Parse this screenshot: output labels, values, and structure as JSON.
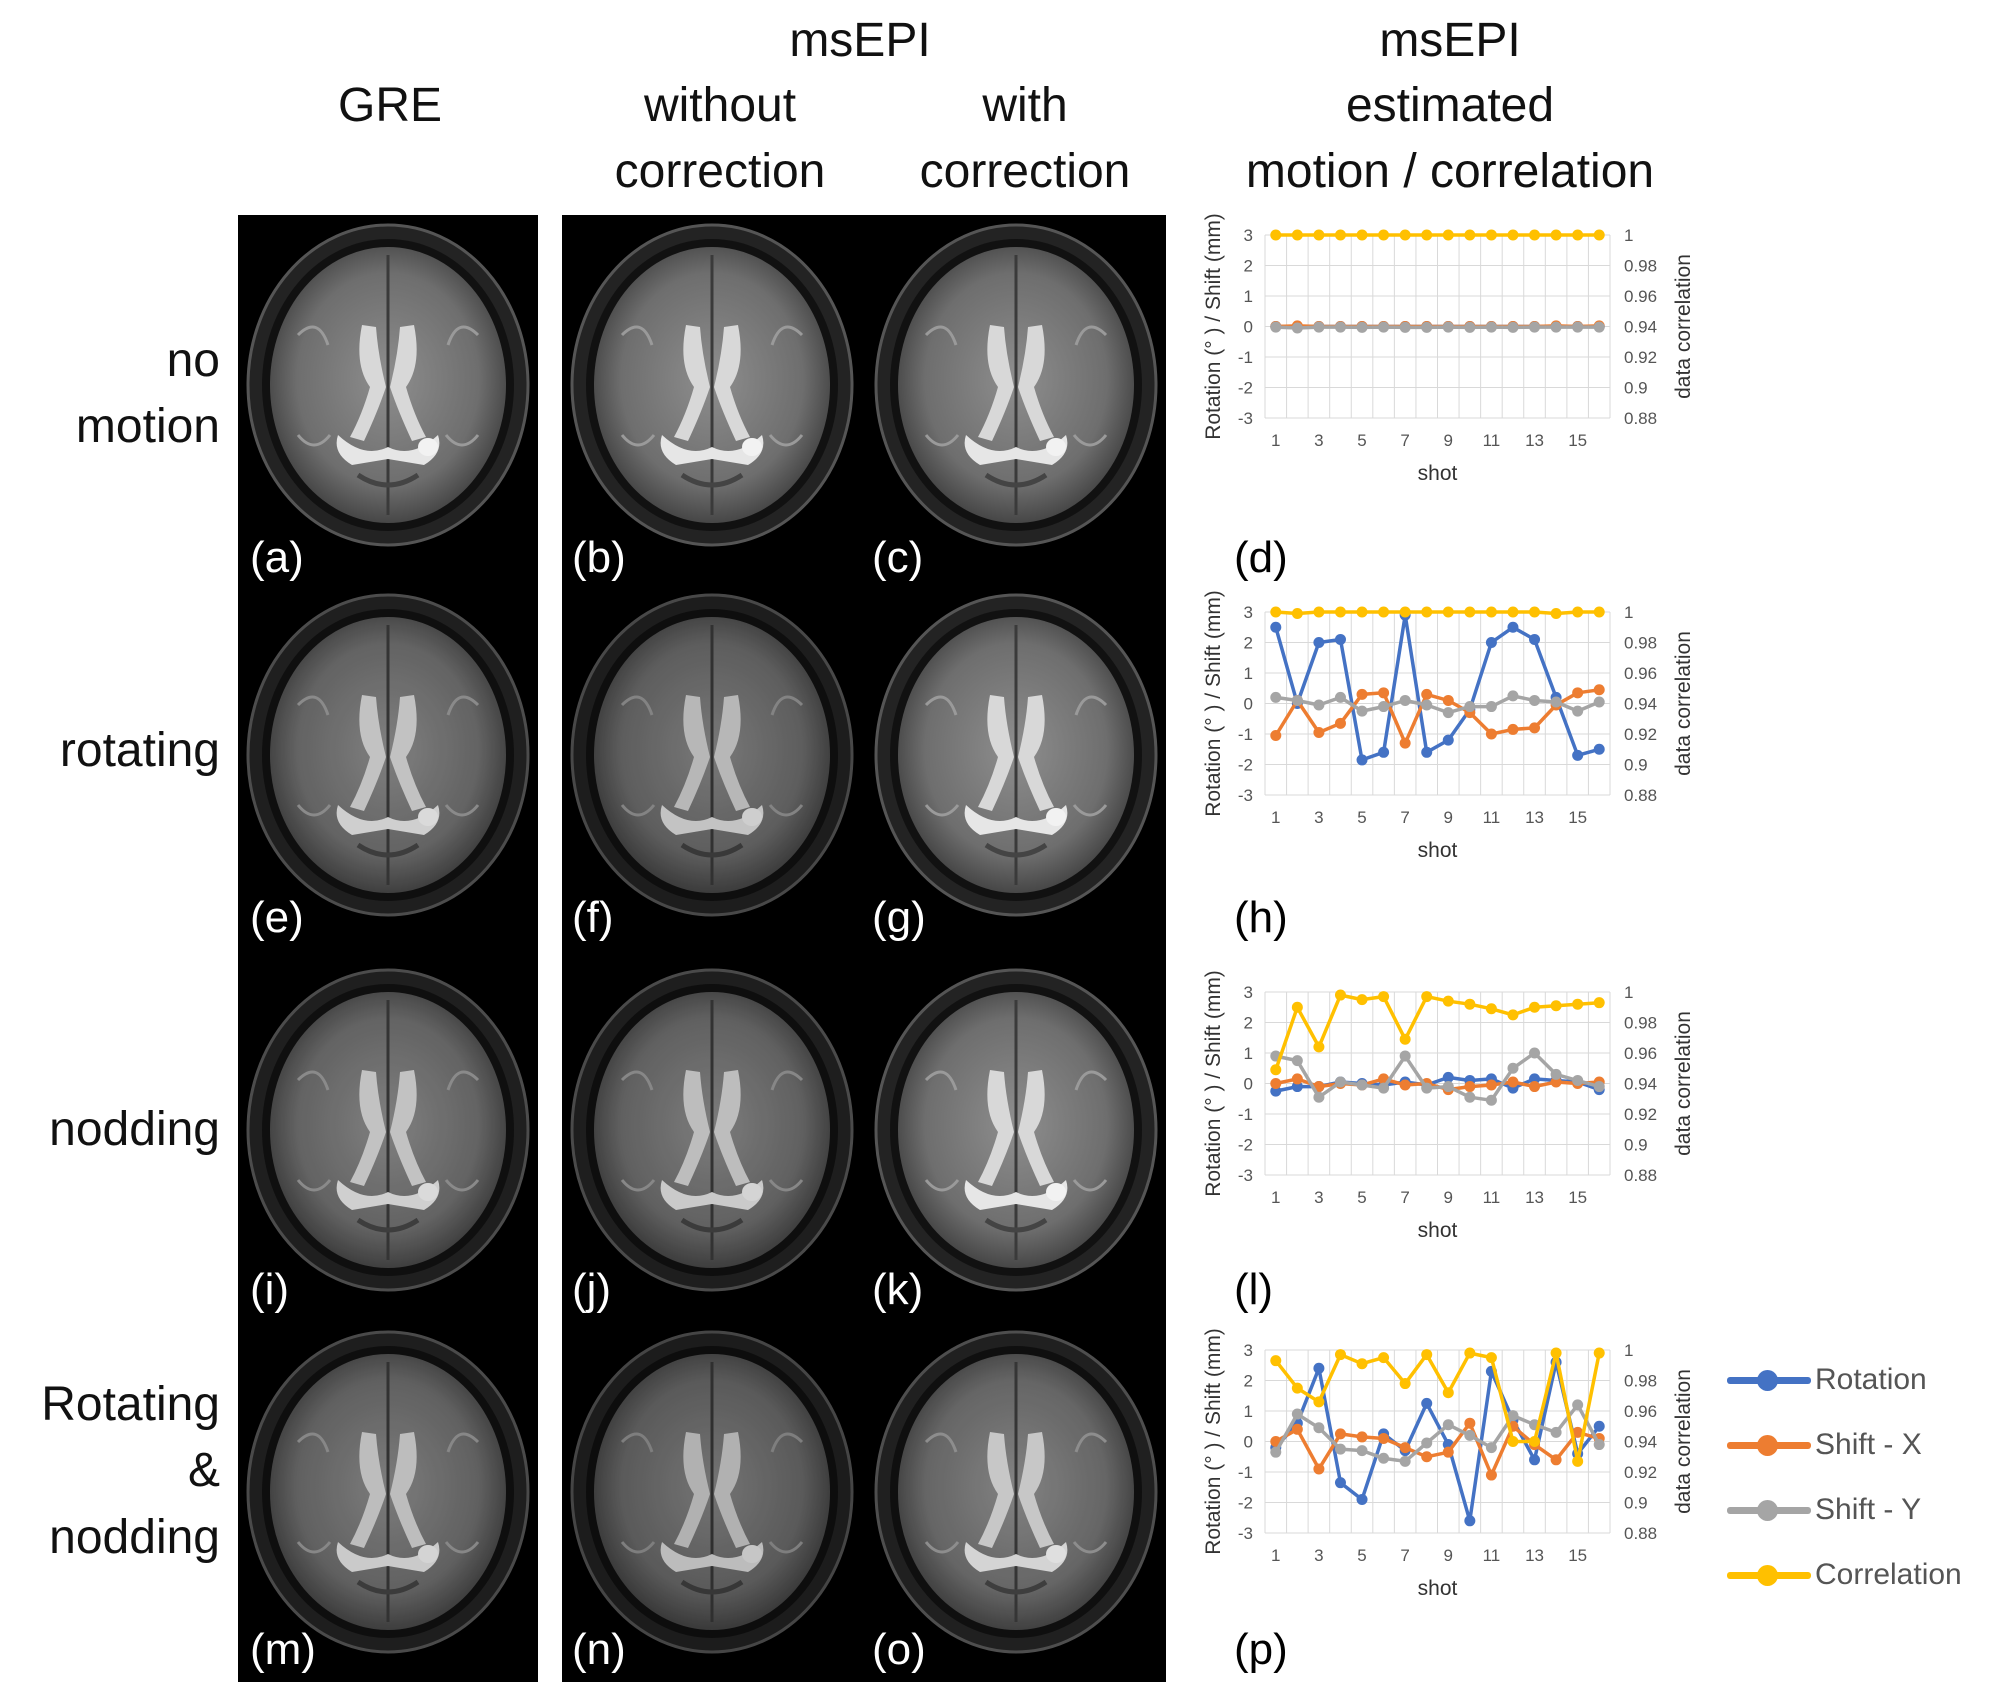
{
  "headers": {
    "gre": "GRE",
    "msepi_left": "msEPI",
    "without_1": "without",
    "without_2": "correction",
    "with_1": "with",
    "with_2": "correction",
    "msepi_right": "msEPI",
    "estimated": "estimated",
    "motion_corr": "motion / correlation"
  },
  "row_labels": {
    "r1a": "no",
    "r1b": "motion",
    "r2": "rotating",
    "r3": "nodding",
    "r4a": "Rotating",
    "r4b": "&",
    "r4c": "nodding"
  },
  "panel_labels": [
    "(a)",
    "(b)",
    "(c)",
    "(d)",
    "(e)",
    "(f)",
    "(g)",
    "(h)",
    "(i)",
    "(j)",
    "(k)",
    "(l)",
    "(m)",
    "(n)",
    "(o)",
    "(p)"
  ],
  "legend": [
    {
      "name": "Rotation",
      "color": "#4472C4"
    },
    {
      "name": "Shift - X",
      "color": "#ED7D31"
    },
    {
      "name": "Shift - Y",
      "color": "#A5A5A5"
    },
    {
      "name": "Correlation",
      "color": "#FFC000"
    }
  ],
  "chart_data": [
    {
      "type": "line",
      "panel": "(d)",
      "xlabel": "shot",
      "ylabel": "Rotation (° ) / Shift (mm)",
      "y2label": "data correlation",
      "ylim": [
        -3,
        3
      ],
      "y2lim": [
        0.88,
        1
      ],
      "yticks": [
        "3",
        "2",
        "1",
        "0",
        "-1",
        "-2",
        "-3"
      ],
      "y2ticks": [
        "1",
        "0.98",
        "0.96",
        "0.94",
        "0.92",
        "0.9",
        "0.88"
      ],
      "xticks": [
        "1",
        "3",
        "5",
        "7",
        "9",
        "11",
        "13",
        "15"
      ],
      "x": [
        1,
        2,
        3,
        4,
        5,
        6,
        7,
        8,
        9,
        10,
        11,
        12,
        13,
        14,
        15,
        16
      ],
      "series": [
        {
          "name": "Rotation",
          "axis": "left",
          "values": [
            0,
            0,
            0,
            0,
            0,
            0,
            0,
            0,
            0,
            0,
            0,
            0,
            0,
            0,
            0,
            0
          ]
        },
        {
          "name": "Shift - X",
          "axis": "left",
          "values": [
            0,
            0.02,
            0,
            0,
            0,
            0,
            0,
            0,
            0,
            0,
            0,
            0,
            0,
            0.02,
            0,
            0.02
          ]
        },
        {
          "name": "Shift - Y",
          "axis": "left",
          "values": [
            -0.02,
            -0.05,
            -0.02,
            -0.02,
            -0.03,
            -0.02,
            -0.03,
            -0.03,
            -0.02,
            -0.03,
            -0.02,
            -0.03,
            -0.02,
            -0.02,
            -0.02,
            -0.02
          ]
        },
        {
          "name": "Correlation",
          "axis": "right",
          "values": [
            1,
            1,
            1,
            1,
            1,
            1,
            1,
            1,
            1,
            1,
            1,
            1,
            1,
            1,
            1,
            1
          ]
        }
      ]
    },
    {
      "type": "line",
      "panel": "(h)",
      "xlabel": "shot",
      "ylabel": "Rotation (° ) / Shift (mm)",
      "y2label": "data correlation",
      "ylim": [
        -3,
        3
      ],
      "y2lim": [
        0.88,
        1
      ],
      "yticks": [
        "3",
        "2",
        "1",
        "0",
        "-1",
        "-2",
        "-3"
      ],
      "y2ticks": [
        "1",
        "0.98",
        "0.96",
        "0.94",
        "0.92",
        "0.9",
        "0.88"
      ],
      "xticks": [
        "1",
        "3",
        "5",
        "7",
        "9",
        "11",
        "13",
        "15"
      ],
      "x": [
        1,
        2,
        3,
        4,
        5,
        6,
        7,
        8,
        9,
        10,
        11,
        12,
        13,
        14,
        15,
        16
      ],
      "series": [
        {
          "name": "Rotation",
          "axis": "left",
          "values": [
            2.5,
            0,
            2.0,
            2.1,
            -1.85,
            -1.6,
            2.9,
            -1.6,
            -1.2,
            -0.2,
            2.0,
            2.5,
            2.1,
            0.2,
            -1.7,
            -1.5
          ]
        },
        {
          "name": "Shift - X",
          "axis": "left",
          "values": [
            -1.05,
            0.1,
            -0.95,
            -0.65,
            0.3,
            0.35,
            -1.3,
            0.3,
            0.1,
            -0.3,
            -1.0,
            -0.85,
            -0.8,
            -0.05,
            0.35,
            0.45
          ]
        },
        {
          "name": "Shift - Y",
          "axis": "left",
          "values": [
            0.2,
            0.1,
            -0.05,
            0.2,
            -0.25,
            -0.1,
            0.1,
            -0.05,
            -0.3,
            -0.1,
            -0.1,
            0.25,
            0.1,
            0.05,
            -0.25,
            0.05
          ]
        },
        {
          "name": "Correlation",
          "axis": "right",
          "values": [
            1,
            0.999,
            1,
            1,
            1,
            1,
            1,
            1,
            1,
            1,
            1,
            1,
            1,
            0.999,
            1,
            1
          ]
        }
      ]
    },
    {
      "type": "line",
      "panel": "(l)",
      "xlabel": "shot",
      "ylabel": "Rotation (° ) / Shift (mm)",
      "y2label": "data correlation",
      "ylim": [
        -3,
        3
      ],
      "y2lim": [
        0.88,
        1
      ],
      "yticks": [
        "3",
        "2",
        "1",
        "0",
        "-1",
        "-2",
        "-3"
      ],
      "y2ticks": [
        "1",
        "0.98",
        "0.96",
        "0.94",
        "0.92",
        "0.9",
        "0.88"
      ],
      "xticks": [
        "1",
        "3",
        "5",
        "7",
        "9",
        "11",
        "13",
        "15"
      ],
      "x": [
        1,
        2,
        3,
        4,
        5,
        6,
        7,
        8,
        9,
        10,
        11,
        12,
        13,
        14,
        15,
        16
      ],
      "series": [
        {
          "name": "Rotation",
          "axis": "left",
          "values": [
            -0.25,
            -0.1,
            -0.1,
            0.05,
            0,
            -0.05,
            0.05,
            -0.05,
            0.2,
            0.1,
            0.15,
            -0.15,
            0.15,
            0.1,
            0.05,
            -0.2
          ]
        },
        {
          "name": "Shift - X",
          "axis": "left",
          "values": [
            0,
            0.15,
            -0.1,
            0,
            -0.05,
            0.15,
            -0.05,
            0,
            -0.2,
            -0.1,
            -0.05,
            0.05,
            -0.1,
            0.05,
            0,
            0.05
          ]
        },
        {
          "name": "Shift - Y",
          "axis": "left",
          "values": [
            0.9,
            0.75,
            -0.45,
            0.05,
            -0.05,
            -0.15,
            0.9,
            -0.15,
            -0.1,
            -0.45,
            -0.55,
            0.5,
            1.0,
            0.3,
            0.1,
            -0.1
          ]
        },
        {
          "name": "Correlation",
          "axis": "right",
          "values": [
            0.949,
            0.99,
            0.964,
            0.998,
            0.995,
            0.997,
            0.969,
            0.997,
            0.994,
            0.992,
            0.989,
            0.985,
            0.99,
            0.991,
            0.992,
            0.993
          ]
        }
      ]
    },
    {
      "type": "line",
      "panel": "(p)",
      "xlabel": "shot",
      "ylabel": "Rotation (° ) / Shift (mm)",
      "y2label": "data correlation",
      "ylim": [
        -3,
        3
      ],
      "y2lim": [
        0.88,
        1
      ],
      "yticks": [
        "3",
        "2",
        "1",
        "0",
        "-1",
        "-2",
        "-3"
      ],
      "y2ticks": [
        "1",
        "0.98",
        "0.96",
        "0.94",
        "0.92",
        "0.9",
        "0.88"
      ],
      "xticks": [
        "1",
        "3",
        "5",
        "7",
        "9",
        "11",
        "13",
        "15"
      ],
      "x": [
        1,
        2,
        3,
        4,
        5,
        6,
        7,
        8,
        9,
        10,
        11,
        12,
        13,
        14,
        15,
        16
      ],
      "series": [
        {
          "name": "Rotation",
          "axis": "left",
          "values": [
            -0.2,
            0.6,
            2.4,
            -1.35,
            -1.9,
            0.25,
            -0.3,
            1.25,
            -0.1,
            -2.6,
            2.3,
            0.7,
            -0.6,
            2.6,
            -0.4,
            0.5
          ]
        },
        {
          "name": "Shift - X",
          "axis": "left",
          "values": [
            0,
            0.4,
            -0.9,
            0.25,
            0.15,
            0.1,
            -0.2,
            -0.5,
            -0.35,
            0.6,
            -1.1,
            0.5,
            -0.1,
            -0.6,
            0.3,
            0.1
          ]
        },
        {
          "name": "Shift - Y",
          "axis": "left",
          "values": [
            -0.35,
            0.9,
            0.45,
            -0.25,
            -0.3,
            -0.55,
            -0.65,
            -0.05,
            0.55,
            0.2,
            -0.2,
            0.85,
            0.55,
            0.3,
            1.2,
            -0.1
          ]
        },
        {
          "name": "Correlation",
          "axis": "right",
          "values": [
            0.993,
            0.975,
            0.966,
            0.997,
            0.991,
            0.995,
            0.978,
            0.997,
            0.972,
            0.998,
            0.995,
            0.94,
            0.94,
            0.998,
            0.927,
            0.998
          ]
        }
      ]
    }
  ]
}
